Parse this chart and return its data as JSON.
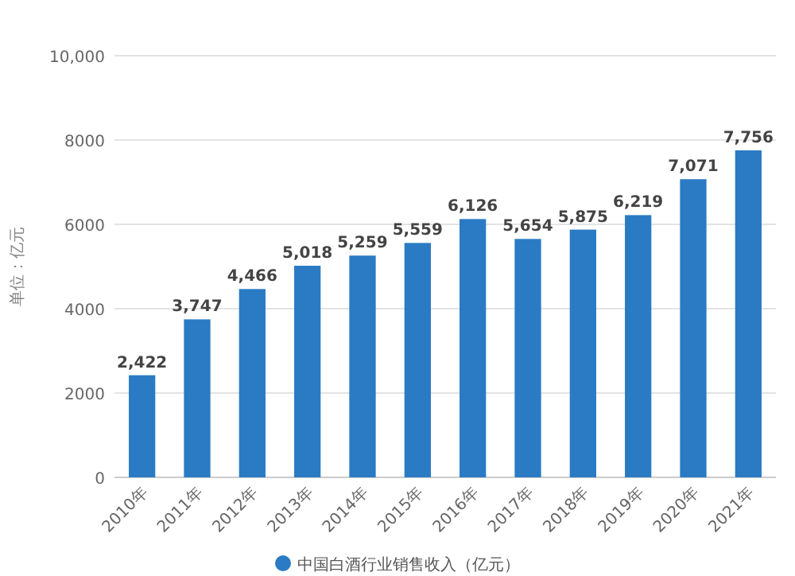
{
  "chart_data": {
    "type": "bar",
    "ylabel": "单位：亿元",
    "categories": [
      "2010年",
      "2011年",
      "2012年",
      "2013年",
      "2014年",
      "2015年",
      "2016年",
      "2017年",
      "2018年",
      "2019年",
      "2020年",
      "2021年"
    ],
    "series": [
      {
        "name": "中国白酒行业销售收入（亿元）",
        "color": "#2a7bc4",
        "values": [
          2422,
          3747,
          4466,
          5018,
          5259,
          5559,
          6126,
          5654,
          5875,
          6219,
          7071,
          7756
        ],
        "value_labels": [
          "2,422",
          "3,747",
          "4,466",
          "5,018",
          "5,259",
          "5,559",
          "6,126",
          "5,654",
          "5,875",
          "6,219",
          "7,071",
          "7,756"
        ]
      }
    ],
    "ylim": [
      0,
      10000
    ],
    "yticks": [
      0,
      2000,
      4000,
      6000,
      8000,
      {
        "value": 10000,
        "label": "10,000"
      }
    ],
    "grid": "y",
    "legend": "bottom",
    "marker": "circle"
  }
}
